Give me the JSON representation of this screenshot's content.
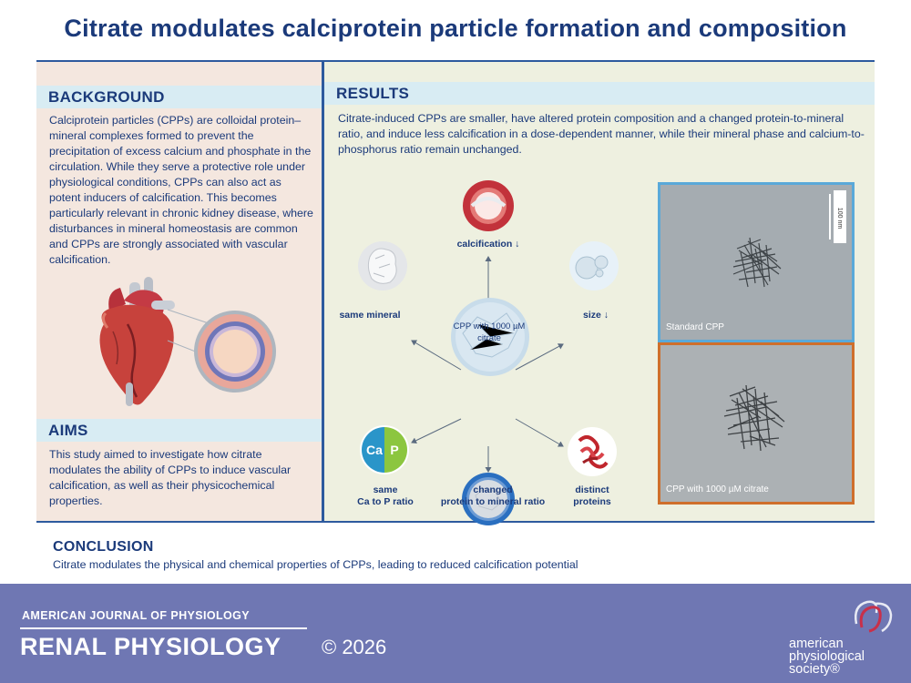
{
  "title": "Citrate modulates calciprotein particle formation and composition",
  "background": {
    "heading": "BACKGROUND",
    "text": "Calciprotein particles (CPPs) are colloidal protein–mineral complexes formed to prevent the precipitation of excess calcium and phosphate in the circulation. While they serve a protective role under physiological conditions, CPPs can also act as potent inducers of calcification. This becomes particularly relevant in chronic kidney disease, where disturbances in mineral homeostasis are common and CPPs are strongly associated with vascular calcification."
  },
  "aims": {
    "heading": "AIMS",
    "text": "This study aimed to investigate how citrate modulates the ability of CPPs to induce vascular calcification, as well as their physicochemical properties."
  },
  "results": {
    "heading": "RESULTS",
    "text": "Citrate-induced CPPs are smaller, have altered protein composition and a changed protein-to-mineral ratio, and induce less calcification in a dose-dependent manner, while their mineral phase and calcium-to-phosphorus ratio remain unchanged.",
    "center_label": "CPP with 1000 µM citrate",
    "items": {
      "calcification": "calcification ↓",
      "mineral": "same mineral",
      "size": "size ↓",
      "ca_p_line1": "same",
      "ca_p_line2": "Ca to P ratio",
      "ca_symbol": "Ca",
      "p_symbol": "P",
      "proteins_line1": "distinct",
      "proteins_line2": "proteins",
      "ratio_line1": "changed",
      "ratio_line2": "protein to mineral ratio"
    },
    "tem": {
      "scale_label": "100 nm",
      "label_standard": "Standard CPP",
      "label_citrate": "CPP with 1000 µM citrate"
    }
  },
  "conclusion": {
    "heading": "CONCLUSION",
    "text": "Citrate modulates the physical and chemical properties of CPPs, leading to reduced calcification potential"
  },
  "footer": {
    "journal_top": "AMERICAN JOURNAL OF PHYSIOLOGY",
    "journal_main": "RENAL PHYSIOLOGY",
    "copyright": "© 2026",
    "society_line1": "american",
    "society_line2": "physiological",
    "society_line3": "society®"
  },
  "colors": {
    "title": "#1b3a7a",
    "left_panel": "#f4e7df",
    "right_panel": "#eef0e0",
    "section_header": "#d8ecf3",
    "footer": "#6f77b3",
    "tem_standard_border": "#5aa9d9",
    "tem_citrate_border": "#cf6f2b"
  }
}
